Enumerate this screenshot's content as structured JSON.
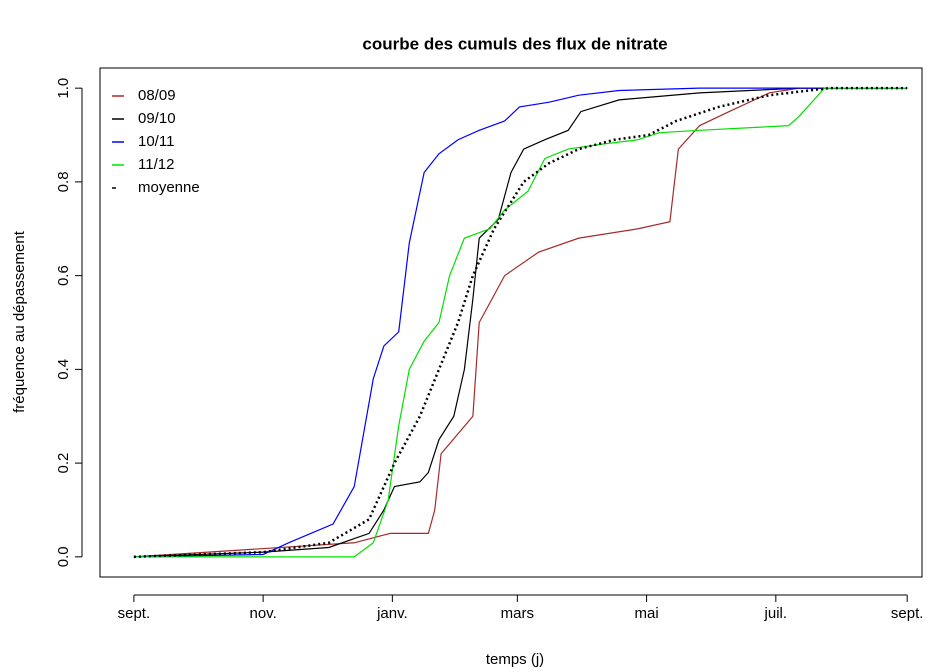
{
  "chart_data": {
    "type": "line",
    "title": "courbe des cumuls des flux de nitrate",
    "xlabel": "temps (j)",
    "ylabel": "fréquence au dépassement",
    "xlim": [
      -16,
      372
    ],
    "ylim": [
      -0.043,
      1.043
    ],
    "xticks": [
      {
        "value": 0,
        "label": "sept."
      },
      {
        "value": 61,
        "label": "nov."
      },
      {
        "value": 122,
        "label": "janv."
      },
      {
        "value": 181,
        "label": "mars"
      },
      {
        "value": 242,
        "label": "mai"
      },
      {
        "value": 303,
        "label": "juil."
      },
      {
        "value": 365,
        "label": "sept."
      }
    ],
    "yticks": [
      {
        "value": 0,
        "label": "0.0"
      },
      0.2,
      0.4,
      0.6,
      0.8,
      {
        "value": 1,
        "label": "1.0"
      }
    ],
    "legend": "top-left",
    "series": [
      {
        "name": "08/09",
        "color": "#a52a2a",
        "x": [
          0,
          104,
          121,
          139,
          142,
          145,
          160,
          163,
          175,
          191,
          210,
          238,
          253,
          257,
          267,
          281,
          300,
          314,
          365
        ],
        "values": [
          0,
          0.03,
          0.05,
          0.05,
          0.1,
          0.22,
          0.3,
          0.5,
          0.6,
          0.65,
          0.68,
          0.7,
          0.715,
          0.87,
          0.92,
          0.95,
          0.99,
          1.0,
          1.0
        ]
      },
      {
        "name": "09/10",
        "color": "#000000",
        "x": [
          0,
          61,
          92,
          111,
          118,
          123,
          135,
          139,
          144,
          151,
          156,
          160,
          163,
          172,
          178,
          184,
          194,
          205,
          211,
          229,
          267,
          314,
          365
        ],
        "values": [
          0,
          0.01,
          0.02,
          0.05,
          0.1,
          0.15,
          0.16,
          0.18,
          0.25,
          0.3,
          0.4,
          0.55,
          0.68,
          0.72,
          0.82,
          0.87,
          0.89,
          0.91,
          0.95,
          0.975,
          0.99,
          1.0,
          1.0
        ]
      },
      {
        "name": "10/11",
        "color": "#0000ff",
        "x": [
          0,
          61,
          73,
          94,
          104,
          113,
          118,
          125,
          130,
          137,
          144,
          153,
          163,
          175,
          182,
          196,
          210,
          229,
          267,
          365
        ],
        "values": [
          0,
          0.005,
          0.03,
          0.07,
          0.15,
          0.38,
          0.45,
          0.48,
          0.67,
          0.82,
          0.86,
          0.89,
          0.91,
          0.93,
          0.96,
          0.97,
          0.985,
          0.995,
          1.0,
          1.0
        ]
      },
      {
        "name": "11/12",
        "color": "#00e000",
        "x": [
          0,
          104,
          113,
          120,
          125,
          130,
          137,
          144,
          149,
          156,
          168,
          175,
          186,
          194,
          205,
          220,
          238,
          248,
          267,
          309,
          314,
          326,
          365
        ],
        "values": [
          0,
          0,
          0.03,
          0.12,
          0.28,
          0.4,
          0.46,
          0.5,
          0.6,
          0.68,
          0.7,
          0.74,
          0.78,
          0.85,
          0.87,
          0.88,
          0.89,
          0.905,
          0.91,
          0.92,
          0.94,
          1.0,
          1.0
        ]
      },
      {
        "name": "moyenne",
        "color": "#000000",
        "line_style": "dotted",
        "x": [
          0,
          61,
          92,
          111,
          123,
          135,
          144,
          153,
          160,
          170,
          177,
          184,
          196,
          210,
          227,
          243,
          256,
          276,
          300,
          328,
          365
        ],
        "values": [
          0,
          0.01,
          0.03,
          0.08,
          0.2,
          0.3,
          0.4,
          0.5,
          0.6,
          0.7,
          0.75,
          0.8,
          0.84,
          0.87,
          0.89,
          0.9,
          0.93,
          0.96,
          0.985,
          1.0,
          1.0
        ]
      }
    ]
  }
}
